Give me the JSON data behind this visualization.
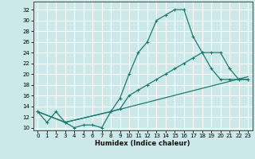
{
  "xlabel": "Humidex (Indice chaleur)",
  "background_color": "#cce8e8",
  "grid_color": "#ffffff",
  "line_color": "#1a7a6e",
  "xlim": [
    -0.5,
    23.5
  ],
  "ylim": [
    9.5,
    33.5
  ],
  "xticks": [
    0,
    1,
    2,
    3,
    4,
    5,
    6,
    7,
    8,
    9,
    10,
    11,
    12,
    13,
    14,
    15,
    16,
    17,
    18,
    19,
    20,
    21,
    22,
    23
  ],
  "yticks": [
    10,
    12,
    14,
    16,
    18,
    20,
    22,
    24,
    26,
    28,
    30,
    32
  ],
  "line1_x": [
    0,
    1,
    2,
    3,
    4,
    5,
    6,
    7,
    8,
    9,
    10,
    11,
    12,
    13,
    14,
    15,
    16,
    17,
    18,
    19,
    20,
    21,
    22,
    23
  ],
  "line1_y": [
    13,
    11,
    13,
    11,
    10,
    10.5,
    10.5,
    10,
    13,
    15.5,
    20,
    24,
    26,
    30,
    31,
    32,
    32,
    27,
    24,
    21,
    19,
    19,
    19,
    19
  ],
  "line2_x": [
    0,
    3,
    8,
    9,
    10,
    11,
    12,
    13,
    14,
    15,
    16,
    17,
    18,
    19,
    20,
    21,
    22,
    23
  ],
  "line2_y": [
    13,
    11,
    13,
    13.5,
    16,
    17,
    18,
    19,
    20,
    21,
    22,
    23,
    24,
    24,
    24,
    21,
    19,
    19
  ],
  "line3_x": [
    0,
    3,
    8,
    23
  ],
  "line3_y": [
    13,
    11,
    13,
    19.5
  ]
}
